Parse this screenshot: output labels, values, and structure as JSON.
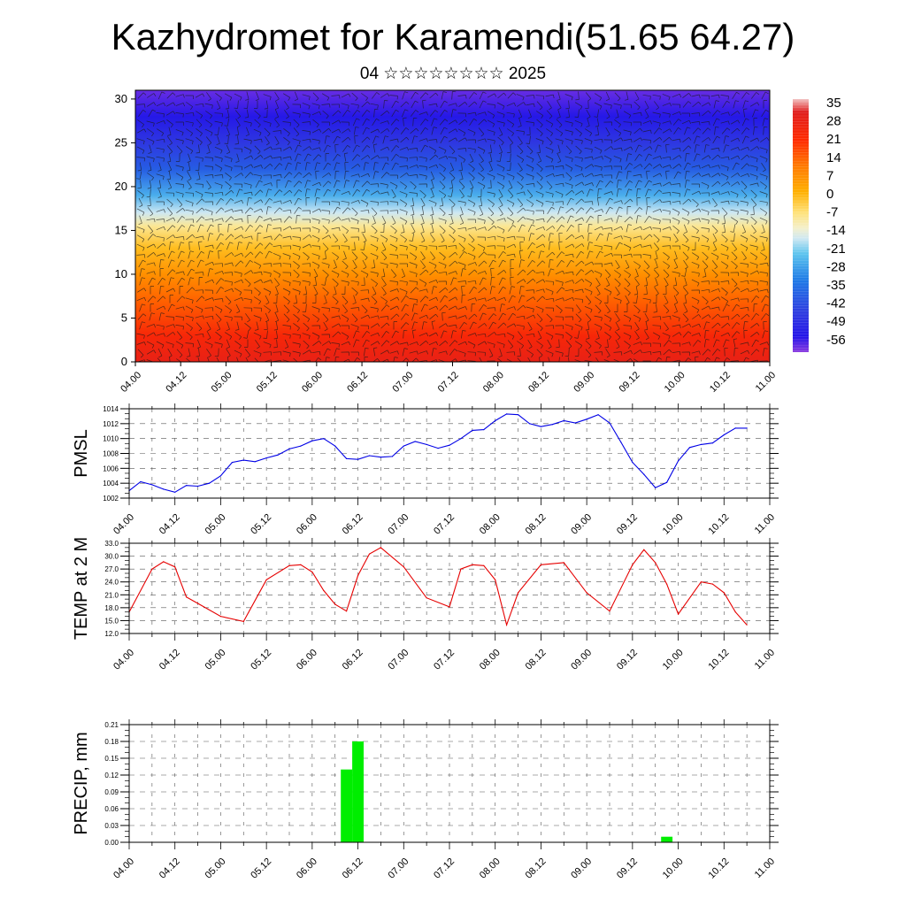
{
  "header": {
    "title": "Kazhydromet for Karamendi(51.65 64.27)",
    "subtitle": "04 ☆☆☆☆☆☆☆☆ 2025"
  },
  "chart_data": [
    {
      "type": "heatmap",
      "title": "",
      "xlabel": "",
      "ylabel": "",
      "x_tick_labels": [
        "04.00",
        "04.12",
        "05.00",
        "05.12",
        "06.00",
        "06.12",
        "07.00",
        "07.12",
        "08.00",
        "08.12",
        "09.00",
        "09.12",
        "10.00",
        "10.12",
        "11.00"
      ],
      "y_ticks": [
        0,
        5,
        10,
        15,
        20,
        25,
        30
      ],
      "ylim": [
        0,
        31
      ],
      "colorbar_labels": [
        "35",
        "28",
        "21",
        "14",
        "7",
        "0",
        "-7",
        "-14",
        "-21",
        "-28",
        "-35",
        "-42",
        "-49",
        "-56"
      ],
      "colorbar_range": [
        -60,
        38
      ],
      "colorbar_stops": [
        {
          "v": 38,
          "c": "#f2c2c2"
        },
        {
          "v": 33,
          "c": "#e01e1e"
        },
        {
          "v": 22,
          "c": "#ff2a00"
        },
        {
          "v": 12,
          "c": "#ff7a00"
        },
        {
          "v": 2,
          "c": "#ffb000"
        },
        {
          "v": -6,
          "c": "#ffe27a"
        },
        {
          "v": -12,
          "c": "#f4f0cc"
        },
        {
          "v": -16,
          "c": "#cfe8f2"
        },
        {
          "v": -22,
          "c": "#5cc4ee"
        },
        {
          "v": -32,
          "c": "#1f7be6"
        },
        {
          "v": -45,
          "c": "#2f3be0"
        },
        {
          "v": -54,
          "c": "#2414e8"
        },
        {
          "v": -60,
          "c": "#8a3ae0"
        }
      ],
      "vertical_profile": [
        {
          "h": 0,
          "t": 30
        },
        {
          "h": 3,
          "t": 25
        },
        {
          "h": 7,
          "t": 15
        },
        {
          "h": 10,
          "t": 8
        },
        {
          "h": 13,
          "t": 0
        },
        {
          "h": 15.5,
          "t": -8
        },
        {
          "h": 17,
          "t": -16
        },
        {
          "h": 19,
          "t": -25
        },
        {
          "h": 22,
          "t": -38
        },
        {
          "h": 25,
          "t": -46
        },
        {
          "h": 28,
          "t": -53
        },
        {
          "h": 31,
          "t": -58
        }
      ],
      "overlay": "wind barbs"
    },
    {
      "type": "line",
      "ylabel": "PMSL",
      "ylim": [
        1002,
        1014
      ],
      "y_ticks": [
        1002,
        1004,
        1006,
        1008,
        1010,
        1012,
        1014
      ],
      "x_tick_labels": [
        "04.00",
        "04.12",
        "05.00",
        "05.12",
        "06.00",
        "06.12",
        "07.00",
        "07.12",
        "08.00",
        "08.12",
        "09.00",
        "09.12",
        "10.00",
        "10.12",
        "11.00"
      ],
      "color": "#0000e6",
      "x": [
        0,
        3,
        6,
        9,
        12,
        15,
        18,
        21,
        24,
        27,
        30,
        33,
        36,
        39,
        42,
        45,
        48,
        51,
        54,
        57,
        60,
        63,
        66,
        69,
        72,
        75,
        78,
        81,
        84,
        87,
        90,
        93,
        96,
        99,
        102,
        105,
        108,
        111,
        114,
        117,
        120,
        123,
        126,
        129,
        132,
        135,
        138,
        141,
        144,
        147,
        150,
        153,
        156,
        159,
        162
      ],
      "values": [
        1003.0,
        1004.2,
        1003.8,
        1003.2,
        1002.8,
        1003.7,
        1003.6,
        1004.0,
        1005.0,
        1006.8,
        1007.1,
        1006.9,
        1007.4,
        1007.8,
        1008.6,
        1009.0,
        1009.7,
        1010.0,
        1009.0,
        1007.3,
        1007.2,
        1007.7,
        1007.5,
        1007.6,
        1009.0,
        1009.6,
        1009.2,
        1008.7,
        1009.1,
        1010.0,
        1011.1,
        1011.2,
        1012.4,
        1013.3,
        1013.2,
        1012.0,
        1011.6,
        1011.9,
        1012.4,
        1012.1,
        1012.6,
        1013.2,
        1012.1,
        1009.5,
        1006.8,
        1005.2,
        1003.4,
        1004.1,
        1007.0,
        1008.8,
        1009.2,
        1009.4,
        1010.5,
        1011.4,
        1011.4
      ]
    },
    {
      "type": "line",
      "ylabel": "TEMP at 2 M",
      "ylim": [
        12,
        33
      ],
      "y_ticks": [
        12,
        15,
        18,
        21,
        24,
        27,
        30,
        33
      ],
      "y_tick_labels": [
        "12.0",
        "15.0",
        "18.0",
        "21.0",
        "24.0",
        "27.0",
        "30.0",
        "33.0"
      ],
      "x_tick_labels": [
        "04.00",
        "04.12",
        "05.00",
        "05.12",
        "06.00",
        "06.12",
        "07.00",
        "07.12",
        "08.00",
        "08.12",
        "09.00",
        "09.12",
        "10.00",
        "10.12",
        "11.00"
      ],
      "color": "#e60000",
      "x": [
        0,
        6,
        9,
        12,
        15,
        18,
        24,
        30,
        36,
        42,
        45,
        48,
        51,
        54,
        57,
        60,
        63,
        66,
        72,
        78,
        84,
        87,
        90,
        93,
        96,
        99,
        102,
        108,
        114,
        120,
        126,
        132,
        135,
        138,
        141,
        144,
        150,
        153,
        156,
        159,
        162
      ],
      "values": [
        17.0,
        27.0,
        28.7,
        27.5,
        20.5,
        19.0,
        16.0,
        14.8,
        24.5,
        27.8,
        28.0,
        26.3,
        22.0,
        18.8,
        17.2,
        25.5,
        30.5,
        32.0,
        27.5,
        20.3,
        18.2,
        27.0,
        28.0,
        27.8,
        24.5,
        14.0,
        21.5,
        28.0,
        28.5,
        21.5,
        17.2,
        28.0,
        31.5,
        28.5,
        23.5,
        16.5,
        24.0,
        23.5,
        21.5,
        17.0,
        14.0
      ]
    },
    {
      "type": "bar",
      "ylabel": "PRECIP, mm",
      "ylim": [
        0,
        0.21
      ],
      "y_ticks": [
        0,
        0.03,
        0.06,
        0.09,
        0.12,
        0.15,
        0.18,
        0.21
      ],
      "y_tick_labels": [
        "0.00",
        "0.03",
        "0.06",
        "0.09",
        "0.12",
        "0.15",
        "0.18",
        "0.21"
      ],
      "x_tick_labels": [
        "04.00",
        "04.12",
        "05.00",
        "05.12",
        "06.00",
        "06.12",
        "07.00",
        "07.12",
        "08.00",
        "08.12",
        "09.00",
        "09.12",
        "10.00",
        "10.12",
        "11.00"
      ],
      "color": "#00ee00",
      "bars": [
        {
          "x": 57,
          "value": 0.13
        },
        {
          "x": 60,
          "value": 0.18
        },
        {
          "x": 141,
          "value": 0.01
        }
      ]
    }
  ]
}
